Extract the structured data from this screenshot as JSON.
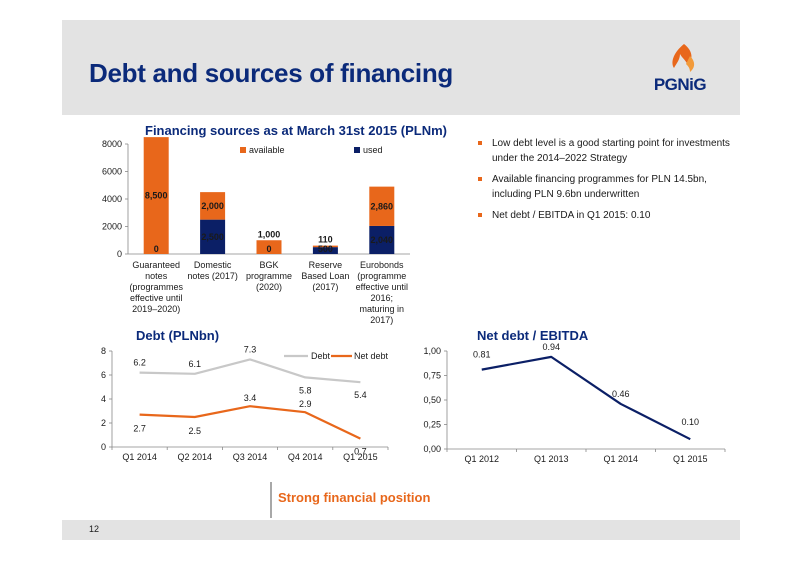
{
  "page": {
    "title": "Debt and sources of financing",
    "logo_text": "PGNiG",
    "footer_text": "Strong financial position",
    "page_number": "12"
  },
  "colors": {
    "available": "#e8671b",
    "used": "#0b1f66",
    "debt": "#c8c8c8",
    "net_debt": "#e8671b",
    "ratio": "#0b1f66"
  },
  "bullets": [
    "Low debt level is a good starting point for investments under the 2014–2022 Strategy",
    "Available financing programmes for PLN 14.5bn, including PLN 9.6bn underwritten",
    "Net debt / EBITDA in Q1 2015: 0.10"
  ],
  "chart_data": [
    {
      "type": "bar",
      "stacked": true,
      "title": "Financing sources as at March 31st 2015 (PLNm)",
      "categories": [
        [
          "Guaranteed",
          "notes",
          "(programmes",
          "effective until",
          "2019–2020)"
        ],
        [
          "Domestic",
          "notes (2017)"
        ],
        [
          "BGK",
          "programme",
          "(2020)"
        ],
        [
          "Reserve",
          "Based Loan",
          "(2017)"
        ],
        [
          "Eurobonds",
          "(programme",
          "effective until",
          "2016;",
          "maturing in",
          "2017)"
        ]
      ],
      "series": [
        {
          "name": "used",
          "values": [
            0,
            2500,
            0,
            500,
            2040
          ],
          "labels": [
            "0",
            "2,500",
            "0",
            "500",
            "2,040"
          ]
        },
        {
          "name": "available",
          "values": [
            8500,
            2000,
            1000,
            110,
            2860
          ],
          "labels": [
            "8,500",
            "2,000",
            "1,000",
            "110",
            "2,860"
          ]
        }
      ],
      "legend": [
        "available",
        "used"
      ],
      "ylim": [
        0,
        8000
      ],
      "yticks": [
        "0",
        "2000",
        "4000",
        "6000",
        "8000"
      ],
      "legend_position": "top"
    },
    {
      "type": "line",
      "title": "Debt (PLNbn)",
      "categories": [
        "Q1 2014",
        "Q2 2014",
        "Q3 2014",
        "Q4 2014",
        "Q1 2015"
      ],
      "series": [
        {
          "name": "Debt",
          "values": [
            6.2,
            6.1,
            7.3,
            5.8,
            5.4
          ],
          "labels": [
            "6.2",
            "6.1",
            "7.3",
            "5.8",
            "5.4"
          ]
        },
        {
          "name": "Net debt",
          "values": [
            2.7,
            2.5,
            3.4,
            2.9,
            0.7
          ],
          "labels": [
            "2.7",
            "2.5",
            "3.4",
            "2.9",
            "0.7"
          ]
        }
      ],
      "ylim": [
        0,
        8
      ],
      "yticks": [
        "0",
        "2",
        "4",
        "6",
        "8"
      ],
      "legend_position": "top-right"
    },
    {
      "type": "line",
      "title": "Net debt / EBITDA",
      "categories": [
        "Q1 2012",
        "Q1 2013",
        "Q1 2014",
        "Q1 2015"
      ],
      "series": [
        {
          "name": "Net debt / EBITDA",
          "values": [
            0.81,
            0.94,
            0.46,
            0.1
          ],
          "labels": [
            "0.81",
            "0.94",
            "0.46",
            "0.10"
          ]
        }
      ],
      "ylim": [
        0,
        1
      ],
      "yticks": [
        "0,00",
        "0,25",
        "0,50",
        "0,75",
        "1,00"
      ]
    }
  ]
}
